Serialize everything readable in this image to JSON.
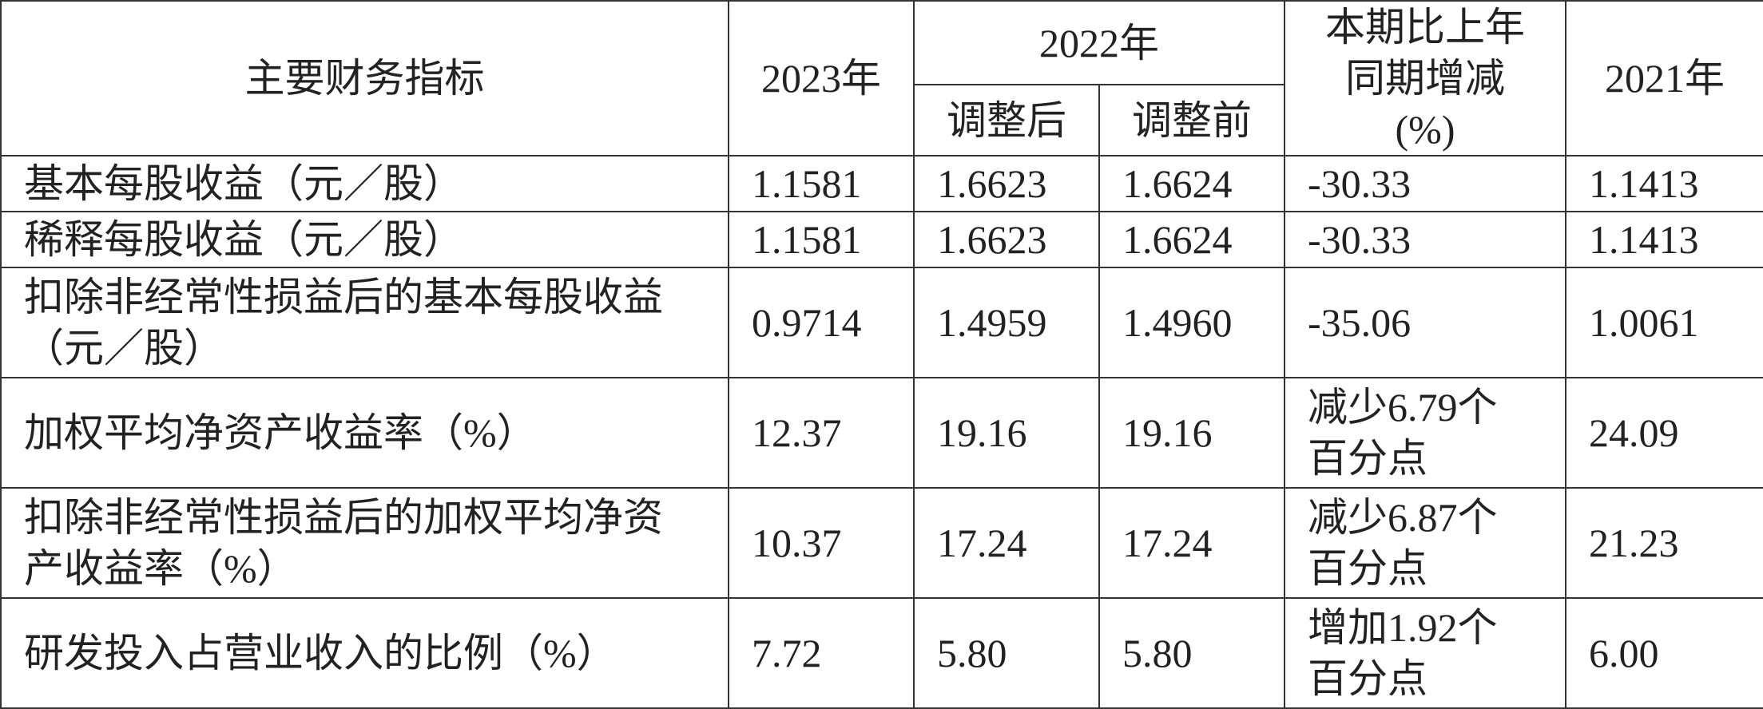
{
  "table": {
    "header": {
      "indicator": "主要财务指标",
      "y2023": "2023年",
      "y2022": "2022年",
      "adjusted": "调整后",
      "before": "调整前",
      "change": "本期比上年同期增减(%)",
      "y2021": "2021年"
    },
    "rows": [
      [
        "基本每股收益（元／股）",
        "1.1581",
        "1.6623",
        "1.6624",
        "-30.33",
        "1.1413"
      ],
      [
        "稀释每股收益（元／股）",
        "1.1581",
        "1.6623",
        "1.6624",
        "-30.33",
        "1.1413"
      ],
      [
        "扣除非经常性损益后的基本每股收益（元／股）",
        "0.9714",
        "1.4959",
        "1.4960",
        "-35.06",
        "1.0061"
      ],
      [
        "加权平均净资产收益率（%）",
        "12.37",
        "19.16",
        "19.16",
        "减少6.79个百分点",
        "24.09"
      ],
      [
        "扣除非经常性损益后的加权平均净资产收益率（%）",
        "10.37",
        "17.24",
        "17.24",
        "减少6.87个百分点",
        "21.23"
      ],
      [
        "研发投入占营业收入的比例（%）",
        "7.72",
        "5.80",
        "5.80",
        "增加1.92个百分点",
        "6.00"
      ]
    ]
  }
}
